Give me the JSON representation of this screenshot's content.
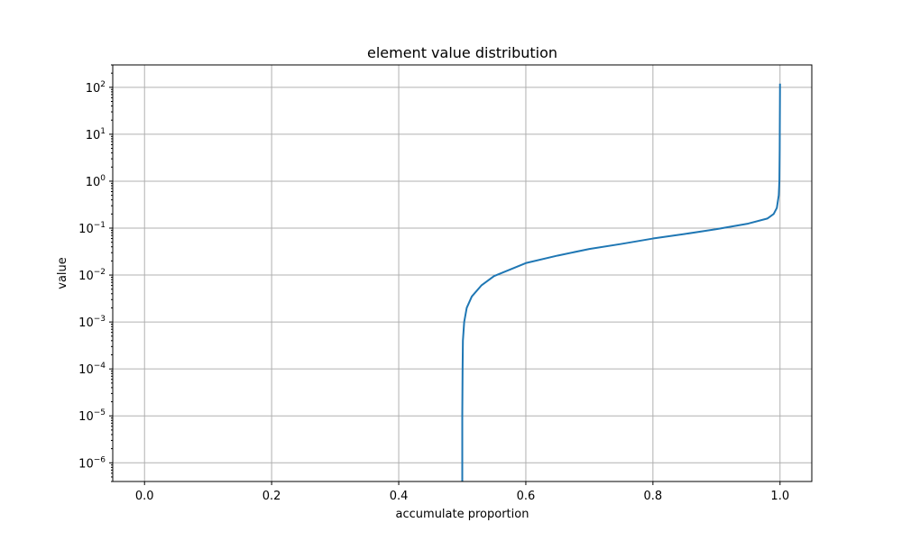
{
  "chart_data": {
    "type": "line",
    "title": "element value distribution",
    "xlabel": "accumulate proportion",
    "ylabel": "value",
    "y_scale": "log",
    "grid": true,
    "xlim": [
      -0.05,
      1.05
    ],
    "ylim": [
      4e-07,
      300
    ],
    "x_ticks": [
      {
        "value": 0.0,
        "label": "0.0"
      },
      {
        "value": 0.2,
        "label": "0.2"
      },
      {
        "value": 0.4,
        "label": "0.4"
      },
      {
        "value": 0.6,
        "label": "0.6"
      },
      {
        "value": 0.8,
        "label": "0.8"
      },
      {
        "value": 1.0,
        "label": "1.0"
      }
    ],
    "y_ticks": [
      {
        "value": 100,
        "base": "10",
        "exp": "2"
      },
      {
        "value": 10,
        "base": "10",
        "exp": "1"
      },
      {
        "value": 1,
        "base": "10",
        "exp": "0"
      },
      {
        "value": 0.1,
        "base": "10",
        "exp": "−1"
      },
      {
        "value": 0.01,
        "base": "10",
        "exp": "−2"
      },
      {
        "value": 0.001,
        "base": "10",
        "exp": "−3"
      },
      {
        "value": 0.0001,
        "base": "10",
        "exp": "−4"
      },
      {
        "value": 1e-05,
        "base": "10",
        "exp": "−5"
      },
      {
        "value": 1e-06,
        "base": "10",
        "exp": "−6"
      }
    ],
    "series": [
      {
        "color": "#1f77b4",
        "points": [
          [
            0.5,
            4e-07
          ],
          [
            0.5,
            1e-06
          ],
          [
            0.5,
            1e-05
          ],
          [
            0.5005,
            0.0001
          ],
          [
            0.501,
            0.0004
          ],
          [
            0.503,
            0.001
          ],
          [
            0.507,
            0.002
          ],
          [
            0.515,
            0.0035
          ],
          [
            0.53,
            0.006
          ],
          [
            0.55,
            0.0095
          ],
          [
            0.6,
            0.018
          ],
          [
            0.65,
            0.026
          ],
          [
            0.7,
            0.036
          ],
          [
            0.75,
            0.046
          ],
          [
            0.8,
            0.06
          ],
          [
            0.85,
            0.075
          ],
          [
            0.9,
            0.095
          ],
          [
            0.95,
            0.125
          ],
          [
            0.98,
            0.16
          ],
          [
            0.99,
            0.2
          ],
          [
            0.995,
            0.27
          ],
          [
            0.998,
            0.5
          ],
          [
            0.999,
            1.0
          ],
          [
            0.9995,
            5
          ],
          [
            1.0,
            120
          ]
        ]
      }
    ]
  }
}
